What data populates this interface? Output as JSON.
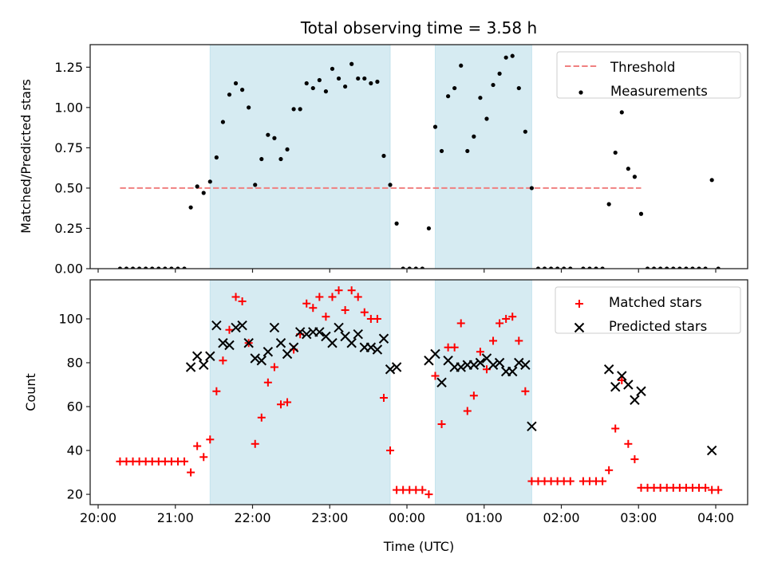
{
  "chart_data": [
    {
      "type": "scatter",
      "panel": "top",
      "title": "Total observing time = 3.58 h",
      "xlabel": "",
      "ylabel": "Matched/Predicted stars",
      "ylim": [
        0,
        1.39
      ],
      "xlim": [
        "19:54",
        "04:29"
      ],
      "yticks": [
        "0.00",
        "0.25",
        "0.50",
        "0.75",
        "1.00",
        "1.25"
      ],
      "ytick_values": [
        0,
        0.25,
        0.5,
        0.75,
        1.0,
        1.25
      ],
      "xticks": [
        "20:00",
        "21:00",
        "22:00",
        "23:00",
        "00:00",
        "01:00",
        "02:00",
        "03:00",
        "04:00"
      ],
      "grid": false,
      "legend": {
        "placement": "upper right",
        "entries": [
          "Threshold",
          "Measurements"
        ]
      },
      "shaded_spans": [
        {
          "start": "21:27",
          "end": "23:47",
          "color": "#add8e6"
        },
        {
          "start": "00:22",
          "end": "01:37",
          "color": "#add8e6"
        }
      ],
      "series": [
        {
          "name": "Threshold",
          "kind": "dashed-line",
          "color": "#f08080",
          "y": 0.5,
          "x_range": [
            "20:17",
            "03:02"
          ]
        },
        {
          "name": "Measurements",
          "kind": "scatter",
          "marker": "dot",
          "color": "#000000",
          "points": [
            [
              "20:17",
              0
            ],
            [
              "20:22",
              0
            ],
            [
              "20:27",
              0
            ],
            [
              "20:32",
              0
            ],
            [
              "20:37",
              0
            ],
            [
              "20:42",
              0
            ],
            [
              "20:47",
              0
            ],
            [
              "20:52",
              0
            ],
            [
              "20:57",
              0
            ],
            [
              "21:02",
              0
            ],
            [
              "21:07",
              0
            ],
            [
              "21:12",
              0.38
            ],
            [
              "21:17",
              0.51
            ],
            [
              "21:22",
              0.47
            ],
            [
              "21:27",
              0.54
            ],
            [
              "21:32",
              0.69
            ],
            [
              "21:37",
              0.91
            ],
            [
              "21:42",
              1.08
            ],
            [
              "21:47",
              1.15
            ],
            [
              "21:52",
              1.11
            ],
            [
              "21:57",
              1.0
            ],
            [
              "22:02",
              0.52
            ],
            [
              "22:07",
              0.68
            ],
            [
              "22:12",
              0.83
            ],
            [
              "22:17",
              0.81
            ],
            [
              "22:22",
              0.68
            ],
            [
              "22:27",
              0.74
            ],
            [
              "22:32",
              0.99
            ],
            [
              "22:37",
              0.99
            ],
            [
              "22:42",
              1.15
            ],
            [
              "22:47",
              1.12
            ],
            [
              "22:52",
              1.17
            ],
            [
              "22:57",
              1.1
            ],
            [
              "23:02",
              1.24
            ],
            [
              "23:07",
              1.18
            ],
            [
              "23:12",
              1.13
            ],
            [
              "23:17",
              1.27
            ],
            [
              "23:22",
              1.18
            ],
            [
              "23:27",
              1.18
            ],
            [
              "23:32",
              1.15
            ],
            [
              "23:37",
              1.16
            ],
            [
              "23:42",
              0.7
            ],
            [
              "23:47",
              0.52
            ],
            [
              "23:52",
              0.28
            ],
            [
              "23:57",
              0
            ],
            [
              "00:02",
              0
            ],
            [
              "00:07",
              0
            ],
            [
              "00:12",
              0
            ],
            [
              "00:17",
              0.25
            ],
            [
              "00:22",
              0.88
            ],
            [
              "00:27",
              0.73
            ],
            [
              "00:32",
              1.07
            ],
            [
              "00:37",
              1.12
            ],
            [
              "00:42",
              1.26
            ],
            [
              "00:47",
              0.73
            ],
            [
              "00:52",
              0.82
            ],
            [
              "00:57",
              1.06
            ],
            [
              "01:02",
              0.93
            ],
            [
              "01:07",
              1.14
            ],
            [
              "01:12",
              1.21
            ],
            [
              "01:17",
              1.31
            ],
            [
              "01:22",
              1.32
            ],
            [
              "01:27",
              1.12
            ],
            [
              "01:32",
              0.85
            ],
            [
              "01:37",
              0.5
            ],
            [
              "01:42",
              0
            ],
            [
              "01:47",
              0
            ],
            [
              "01:52",
              0
            ],
            [
              "01:57",
              0
            ],
            [
              "02:02",
              0
            ],
            [
              "02:07",
              0
            ],
            [
              "02:17",
              0
            ],
            [
              "02:22",
              0
            ],
            [
              "02:27",
              0
            ],
            [
              "02:32",
              0
            ],
            [
              "02:37",
              0.4
            ],
            [
              "02:42",
              0.72
            ],
            [
              "02:47",
              0.97
            ],
            [
              "02:52",
              0.62
            ],
            [
              "02:57",
              0.57
            ],
            [
              "03:02",
              0.34
            ],
            [
              "03:07",
              0
            ],
            [
              "03:12",
              0
            ],
            [
              "03:17",
              0
            ],
            [
              "03:22",
              0
            ],
            [
              "03:27",
              0
            ],
            [
              "03:32",
              0
            ],
            [
              "03:37",
              0
            ],
            [
              "03:42",
              0
            ],
            [
              "03:47",
              0
            ],
            [
              "03:52",
              0
            ],
            [
              "03:57",
              0.55
            ],
            [
              "04:02",
              0
            ]
          ]
        }
      ]
    },
    {
      "type": "scatter",
      "panel": "bottom",
      "title": "",
      "xlabel": "Time (UTC)",
      "ylabel": "Count",
      "ylim": [
        15.3,
        117.8
      ],
      "xlim": [
        "19:54",
        "04:29"
      ],
      "yticks": [
        "20",
        "40",
        "60",
        "80",
        "100"
      ],
      "ytick_values": [
        20,
        40,
        60,
        80,
        100
      ],
      "xticks": [
        "20:00",
        "21:00",
        "22:00",
        "23:00",
        "00:00",
        "01:00",
        "02:00",
        "03:00",
        "04:00"
      ],
      "grid": false,
      "legend": {
        "placement": "upper right",
        "entries": [
          "Matched stars",
          "Predicted stars"
        ]
      },
      "shaded_spans": [
        {
          "start": "21:27",
          "end": "23:47",
          "color": "#add8e6"
        },
        {
          "start": "00:22",
          "end": "01:37",
          "color": "#add8e6"
        }
      ],
      "series": [
        {
          "name": "Matched stars",
          "kind": "scatter",
          "marker": "plus",
          "color": "#ff0000",
          "points": [
            [
              "20:17",
              35
            ],
            [
              "20:22",
              35
            ],
            [
              "20:27",
              35
            ],
            [
              "20:32",
              35
            ],
            [
              "20:37",
              35
            ],
            [
              "20:42",
              35
            ],
            [
              "20:47",
              35
            ],
            [
              "20:52",
              35
            ],
            [
              "20:57",
              35
            ],
            [
              "21:02",
              35
            ],
            [
              "21:07",
              35
            ],
            [
              "21:12",
              30
            ],
            [
              "21:17",
              42
            ],
            [
              "21:22",
              37
            ],
            [
              "21:27",
              45
            ],
            [
              "21:32",
              67
            ],
            [
              "21:37",
              81
            ],
            [
              "21:42",
              95
            ],
            [
              "21:47",
              110
            ],
            [
              "21:52",
              108
            ],
            [
              "21:57",
              89
            ],
            [
              "22:02",
              43
            ],
            [
              "22:07",
              55
            ],
            [
              "22:12",
              71
            ],
            [
              "22:17",
              78
            ],
            [
              "22:22",
              61
            ],
            [
              "22:27",
              62
            ],
            [
              "22:32",
              86
            ],
            [
              "22:37",
              93
            ],
            [
              "22:42",
              107
            ],
            [
              "22:47",
              105
            ],
            [
              "22:52",
              110
            ],
            [
              "22:57",
              101
            ],
            [
              "23:02",
              110
            ],
            [
              "23:07",
              113
            ],
            [
              "23:12",
              104
            ],
            [
              "23:17",
              113
            ],
            [
              "23:22",
              110
            ],
            [
              "23:27",
              103
            ],
            [
              "23:32",
              100
            ],
            [
              "23:37",
              100
            ],
            [
              "23:42",
              64
            ],
            [
              "23:47",
              40
            ],
            [
              "23:52",
              22
            ],
            [
              "23:57",
              22
            ],
            [
              "00:02",
              22
            ],
            [
              "00:07",
              22
            ],
            [
              "00:12",
              22
            ],
            [
              "00:17",
              20
            ],
            [
              "00:22",
              74
            ],
            [
              "00:27",
              52
            ],
            [
              "00:32",
              87
            ],
            [
              "00:37",
              87
            ],
            [
              "00:42",
              98
            ],
            [
              "00:47",
              58
            ],
            [
              "00:52",
              65
            ],
            [
              "00:57",
              85
            ],
            [
              "01:02",
              77
            ],
            [
              "01:07",
              90
            ],
            [
              "01:12",
              98
            ],
            [
              "01:17",
              100
            ],
            [
              "01:22",
              101
            ],
            [
              "01:27",
              90
            ],
            [
              "01:32",
              67
            ],
            [
              "01:37",
              26
            ],
            [
              "01:42",
              26
            ],
            [
              "01:47",
              26
            ],
            [
              "01:52",
              26
            ],
            [
              "01:57",
              26
            ],
            [
              "02:02",
              26
            ],
            [
              "02:07",
              26
            ],
            [
              "02:17",
              26
            ],
            [
              "02:22",
              26
            ],
            [
              "02:27",
              26
            ],
            [
              "02:32",
              26
            ],
            [
              "02:37",
              31
            ],
            [
              "02:42",
              50
            ],
            [
              "02:47",
              72
            ],
            [
              "02:52",
              43
            ],
            [
              "02:57",
              36
            ],
            [
              "03:02",
              23
            ],
            [
              "03:07",
              23
            ],
            [
              "03:12",
              23
            ],
            [
              "03:17",
              23
            ],
            [
              "03:22",
              23
            ],
            [
              "03:27",
              23
            ],
            [
              "03:32",
              23
            ],
            [
              "03:37",
              23
            ],
            [
              "03:42",
              23
            ],
            [
              "03:47",
              23
            ],
            [
              "03:52",
              23
            ],
            [
              "03:57",
              22
            ],
            [
              "04:02",
              22
            ]
          ]
        },
        {
          "name": "Predicted stars",
          "kind": "scatter",
          "marker": "x",
          "color": "#000000",
          "points": [
            [
              "21:12",
              78
            ],
            [
              "21:17",
              83
            ],
            [
              "21:22",
              79
            ],
            [
              "21:27",
              83
            ],
            [
              "21:32",
              97
            ],
            [
              "21:37",
              89
            ],
            [
              "21:42",
              88
            ],
            [
              "21:47",
              96
            ],
            [
              "21:52",
              97
            ],
            [
              "21:57",
              89
            ],
            [
              "22:02",
              82
            ],
            [
              "22:07",
              81
            ],
            [
              "22:12",
              85
            ],
            [
              "22:17",
              96
            ],
            [
              "22:22",
              89
            ],
            [
              "22:27",
              84
            ],
            [
              "22:32",
              87
            ],
            [
              "22:37",
              94
            ],
            [
              "22:42",
              93
            ],
            [
              "22:47",
              94
            ],
            [
              "22:52",
              94
            ],
            [
              "22:57",
              92
            ],
            [
              "23:02",
              89
            ],
            [
              "23:07",
              96
            ],
            [
              "23:12",
              92
            ],
            [
              "23:17",
              89
            ],
            [
              "23:22",
              93
            ],
            [
              "23:27",
              87
            ],
            [
              "23:32",
              87
            ],
            [
              "23:37",
              86
            ],
            [
              "23:42",
              91
            ],
            [
              "23:47",
              77
            ],
            [
              "23:52",
              78
            ],
            [
              "00:17",
              81
            ],
            [
              "00:22",
              84
            ],
            [
              "00:27",
              71
            ],
            [
              "00:32",
              81
            ],
            [
              "00:37",
              78
            ],
            [
              "00:42",
              78
            ],
            [
              "00:47",
              79
            ],
            [
              "00:52",
              79
            ],
            [
              "00:57",
              80
            ],
            [
              "01:02",
              82
            ],
            [
              "01:07",
              79
            ],
            [
              "01:12",
              80
            ],
            [
              "01:17",
              76
            ],
            [
              "01:22",
              76
            ],
            [
              "01:27",
              80
            ],
            [
              "01:32",
              79
            ],
            [
              "01:37",
              51
            ],
            [
              "02:37",
              77
            ],
            [
              "02:42",
              69
            ],
            [
              "02:47",
              74
            ],
            [
              "02:52",
              70
            ],
            [
              "02:57",
              63
            ],
            [
              "03:02",
              67
            ],
            [
              "03:57",
              40
            ]
          ]
        }
      ]
    }
  ]
}
